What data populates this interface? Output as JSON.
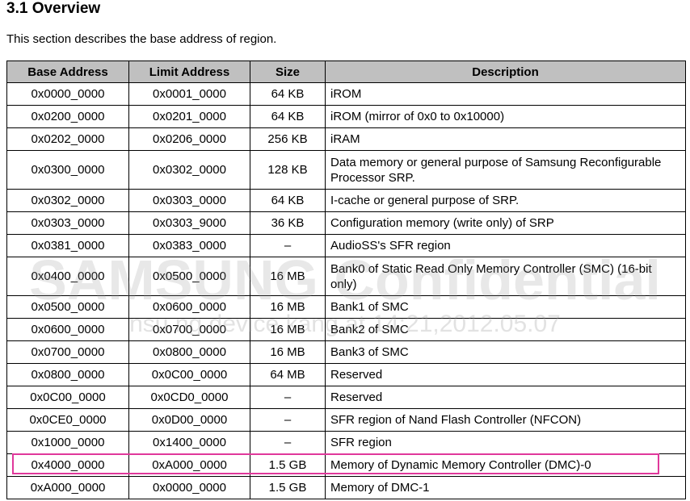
{
  "section": {
    "heading": "3.1 Overview",
    "intro": "This section describes the base address of region."
  },
  "table": {
    "headers": {
      "base": "Base Address",
      "limit": "Limit Address",
      "size": "Size",
      "desc": "Description"
    },
    "rows": [
      {
        "base": "0x0000_0000",
        "limit": "0x0001_0000",
        "size": "64 KB",
        "desc": "iROM"
      },
      {
        "base": "0x0200_0000",
        "limit": "0x0201_0000",
        "size": "64 KB",
        "desc": "iROM (mirror of 0x0 to 0x10000)"
      },
      {
        "base": "0x0202_0000",
        "limit": "0x0206_0000",
        "size": "256 KB",
        "desc": "iRAM"
      },
      {
        "base": "0x0300_0000",
        "limit": "0x0302_0000",
        "size": "128 KB",
        "desc": "Data memory or general purpose of Samsung Reconfigurable Processor SRP."
      },
      {
        "base": "0x0302_0000",
        "limit": "0x0303_0000",
        "size": "64 KB",
        "desc": "I-cache or general purpose of SRP."
      },
      {
        "base": "0x0303_0000",
        "limit": "0x0303_9000",
        "size": "36 KB",
        "desc": "Configuration memory (write only) of SRP"
      },
      {
        "base": "0x0381_0000",
        "limit": "0x0383_0000",
        "size": "–",
        "desc": "AudioSS's SFR region"
      },
      {
        "base": "0x0400_0000",
        "limit": "0x0500_0000",
        "size": "16 MB",
        "desc": "Bank0 of Static Read Only Memory Controller (SMC) (16-bit only)"
      },
      {
        "base": "0x0500_0000",
        "limit": "0x0600_0000",
        "size": "16 MB",
        "desc": "Bank1 of SMC"
      },
      {
        "base": "0x0600_0000",
        "limit": "0x0700_0000",
        "size": "16 MB",
        "desc": "Bank2 of SMC"
      },
      {
        "base": "0x0700_0000",
        "limit": "0x0800_0000",
        "size": "16 MB",
        "desc": "Bank3 of SMC"
      },
      {
        "base": "0x0800_0000",
        "limit": "0x0C00_0000",
        "size": "64 MB",
        "desc": "Reserved"
      },
      {
        "base": "0x0C00_0000",
        "limit": "0x0CD0_0000",
        "size": "–",
        "desc": "Reserved"
      },
      {
        "base": "0x0CE0_0000",
        "limit": "0x0D00_0000",
        "size": "–",
        "desc": "SFR region of Nand Flash Controller (NFCON)"
      },
      {
        "base": "0x1000_0000",
        "limit": "0x1400_0000",
        "size": "–",
        "desc": "SFR region"
      },
      {
        "base": "0x4000_0000",
        "limit": "0xA000_0000",
        "size": "1.5 GB",
        "desc": "Memory of Dynamic Memory Controller (DMC)-0"
      },
      {
        "base": "0xA000_0000",
        "limit": "0x0000_0000",
        "size": "1.5 GB",
        "desc": "Memory of DMC-1"
      }
    ]
  },
  "watermark": {
    "text": "SAMSUNG Confidential",
    "subtext": "nsu ng device.kang at 14:21,2012.05.07"
  },
  "colors": {
    "header_bg": "#c0c0c0",
    "highlight_border": "#e0389b"
  }
}
